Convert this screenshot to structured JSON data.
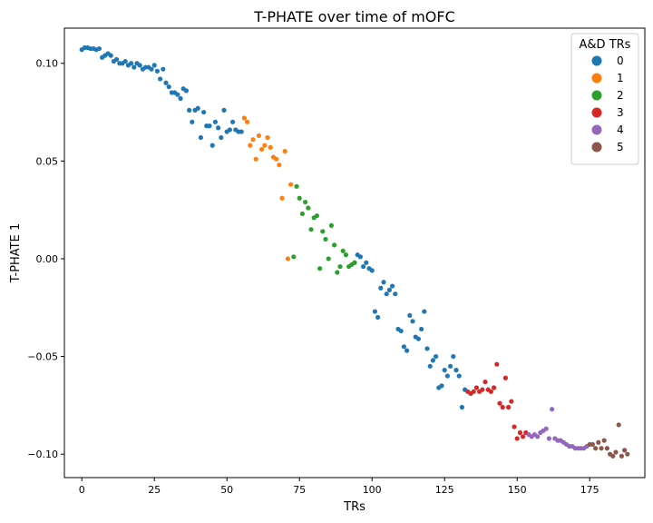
{
  "chart_data": {
    "type": "scatter",
    "title": "T-PHATE over time of mOFC",
    "xlabel": "TRs",
    "ylabel": "T-PHATE 1",
    "xlim": [
      -6,
      194
    ],
    "ylim": [
      -0.112,
      0.118
    ],
    "xticks": [
      0,
      25,
      50,
      75,
      100,
      125,
      150,
      175
    ],
    "yticks": [
      0.1,
      0.05,
      0.0,
      -0.05,
      -0.1
    ],
    "ytick_labels": [
      "0.10",
      "0.05",
      "0.00",
      "−0.05",
      "−0.10"
    ],
    "grid": false,
    "legend": {
      "title": "A&D TRs",
      "placement": "top-right"
    },
    "series": [
      {
        "name": "0",
        "color": "#1f77b4",
        "x": [
          0,
          1,
          2,
          3,
          4,
          5,
          6,
          7,
          8,
          9,
          10,
          11,
          12,
          13,
          14,
          15,
          16,
          17,
          18,
          19,
          20,
          21,
          22,
          23,
          24,
          25,
          26,
          27,
          28,
          29,
          30,
          31,
          32,
          33,
          34,
          35,
          36,
          37,
          38,
          39,
          40,
          41,
          42,
          43,
          44,
          45,
          46,
          47,
          48,
          49,
          50,
          51,
          52,
          53,
          54,
          55,
          95,
          96,
          97,
          98,
          99,
          100,
          101,
          102,
          103,
          104,
          105,
          106,
          107,
          108,
          109,
          110,
          111,
          112,
          113,
          114,
          115,
          116,
          117,
          118,
          119,
          120,
          121,
          122,
          123,
          124,
          125,
          126,
          127,
          128,
          129,
          130,
          131,
          132
        ],
        "y": [
          0.107,
          0.108,
          0.108,
          0.1075,
          0.1075,
          0.107,
          0.1075,
          0.103,
          0.104,
          0.105,
          0.104,
          0.101,
          0.102,
          0.1,
          0.1,
          0.101,
          0.099,
          0.1,
          0.098,
          0.1,
          0.099,
          0.097,
          0.098,
          0.098,
          0.097,
          0.099,
          0.096,
          0.092,
          0.097,
          0.09,
          0.088,
          0.085,
          0.085,
          0.084,
          0.082,
          0.087,
          0.086,
          0.076,
          0.07,
          0.076,
          0.077,
          0.062,
          0.075,
          0.068,
          0.068,
          0.058,
          0.07,
          0.067,
          0.062,
          0.076,
          0.065,
          0.066,
          0.07,
          0.066,
          0.065,
          0.065,
          0.002,
          0.001,
          -0.004,
          -0.002,
          -0.005,
          -0.006,
          -0.027,
          -0.03,
          -0.015,
          -0.012,
          -0.018,
          -0.016,
          -0.014,
          -0.018,
          -0.036,
          -0.037,
          -0.045,
          -0.047,
          -0.029,
          -0.032,
          -0.04,
          -0.041,
          -0.036,
          -0.027,
          -0.046,
          -0.055,
          -0.052,
          -0.05,
          -0.066,
          -0.065,
          -0.057,
          -0.06,
          -0.055,
          -0.05,
          -0.057,
          -0.06,
          -0.076,
          -0.067
        ]
      },
      {
        "name": "1",
        "color": "#ff7f0e",
        "x": [
          56,
          57,
          58,
          59,
          60,
          61,
          62,
          63,
          64,
          65,
          66,
          67,
          68,
          69,
          70,
          71,
          72
        ],
        "y": [
          0.072,
          0.07,
          0.058,
          0.061,
          0.051,
          0.063,
          0.056,
          0.058,
          0.062,
          0.057,
          0.052,
          0.051,
          0.048,
          0.031,
          0.055,
          0.0,
          0.038
        ]
      },
      {
        "name": "2",
        "color": "#2ca02c",
        "x": [
          73,
          74,
          75,
          76,
          77,
          78,
          79,
          80,
          81,
          82,
          83,
          84,
          85,
          86,
          87,
          88,
          89,
          90,
          91,
          92,
          93,
          94
        ],
        "y": [
          0.001,
          0.037,
          0.031,
          0.023,
          0.029,
          0.026,
          0.015,
          0.021,
          0.022,
          -0.005,
          0.014,
          0.01,
          0.0,
          0.017,
          0.007,
          -0.007,
          -0.004,
          0.004,
          0.002,
          -0.004,
          -0.003,
          -0.002
        ]
      },
      {
        "name": "3",
        "color": "#d62728",
        "x": [
          133,
          134,
          135,
          136,
          137,
          138,
          139,
          140,
          141,
          142,
          143,
          144,
          145,
          146,
          147,
          148,
          149,
          150,
          151,
          152,
          153
        ],
        "y": [
          -0.068,
          -0.069,
          -0.068,
          -0.066,
          -0.068,
          -0.067,
          -0.063,
          -0.067,
          -0.068,
          -0.066,
          -0.054,
          -0.074,
          -0.076,
          -0.061,
          -0.076,
          -0.073,
          -0.086,
          -0.092,
          -0.089,
          -0.091,
          -0.089
        ]
      },
      {
        "name": "4",
        "color": "#9467bd",
        "x": [
          154,
          155,
          156,
          157,
          158,
          159,
          160,
          161,
          162,
          163,
          164,
          165,
          166,
          167,
          168,
          169,
          170,
          171,
          172,
          173,
          174
        ],
        "y": [
          -0.09,
          -0.091,
          -0.09,
          -0.091,
          -0.089,
          -0.088,
          -0.087,
          -0.092,
          -0.077,
          -0.092,
          -0.093,
          -0.093,
          -0.094,
          -0.095,
          -0.096,
          -0.096,
          -0.097,
          -0.097,
          -0.097,
          -0.097,
          -0.096
        ]
      },
      {
        "name": "5",
        "color": "#8c564b",
        "x": [
          175,
          176,
          177,
          178,
          179,
          180,
          181,
          182,
          183,
          184,
          185,
          186,
          187,
          188
        ],
        "y": [
          -0.095,
          -0.095,
          -0.097,
          -0.094,
          -0.097,
          -0.093,
          -0.097,
          -0.1,
          -0.101,
          -0.099,
          -0.085,
          -0.101,
          -0.098,
          -0.1
        ]
      }
    ]
  }
}
